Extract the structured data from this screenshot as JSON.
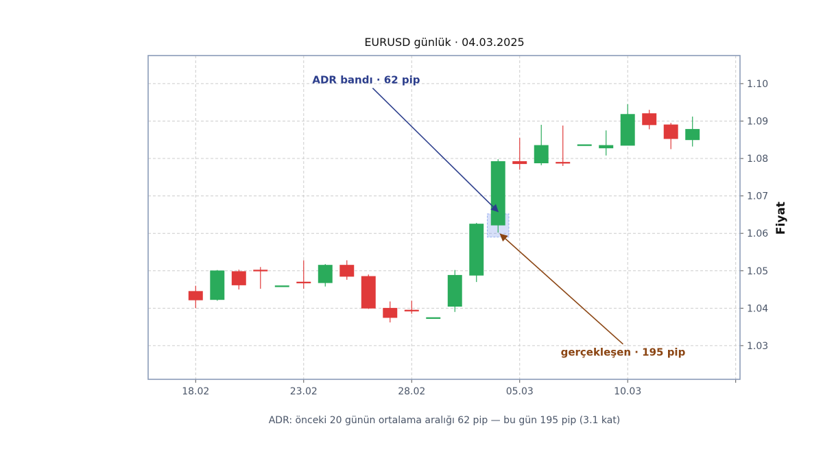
{
  "chart_data": {
    "type": "candlestick",
    "title": "EURUSD günlük · 04.03.2025",
    "ylabel": "Fiyat",
    "caption": "ADR: önceki 20 günün ortalama aralığı 62 pip — bu gün 195 pip (3.1 kat)",
    "ylim": [
      1.021,
      1.1075
    ],
    "y_ticks": [
      "1.03",
      "1.04",
      "1.05",
      "1.06",
      "1.07",
      "1.08",
      "1.09",
      "1.10"
    ],
    "y_tick_values": [
      1.03,
      1.04,
      1.05,
      1.06,
      1.07,
      1.08,
      1.09,
      1.1
    ],
    "x_ticks": [
      "18.02",
      "23.02",
      "28.02",
      "05.03",
      "10.03"
    ],
    "x_tick_index": [
      0,
      5,
      10,
      15,
      20
    ],
    "x_range": [
      -2.2,
      25.2
    ],
    "grid": true,
    "colors": {
      "up": "#2aab5b",
      "down": "#e03a3a",
      "adr_band": "#2c3e8c",
      "realized": "#8b4513",
      "frame": "#8a9bb8"
    },
    "candles": [
      {
        "date": "18.02",
        "open": 1.0445,
        "high": 1.046,
        "low": 1.04,
        "close": 1.0422
      },
      {
        "date": "19.02",
        "open": 1.0423,
        "high": 1.0502,
        "low": 1.042,
        "close": 1.05
      },
      {
        "date": "20.02",
        "open": 1.0498,
        "high": 1.0503,
        "low": 1.045,
        "close": 1.0462
      },
      {
        "date": "21.02",
        "open": 1.0502,
        "high": 1.051,
        "low": 1.0452,
        "close": 1.05
      },
      {
        "date": "22.02",
        "open": 1.046,
        "high": 1.046,
        "low": 1.046,
        "close": 1.046
      },
      {
        "date": "23.02",
        "open": 1.047,
        "high": 1.0528,
        "low": 1.0452,
        "close": 1.0468
      },
      {
        "date": "24.02",
        "open": 1.0468,
        "high": 1.0518,
        "low": 1.0458,
        "close": 1.0515
      },
      {
        "date": "25.02",
        "open": 1.0515,
        "high": 1.0528,
        "low": 1.0476,
        "close": 1.0485
      },
      {
        "date": "26.02",
        "open": 1.0485,
        "high": 1.049,
        "low": 1.0398,
        "close": 1.04
      },
      {
        "date": "27.02",
        "open": 1.04,
        "high": 1.0418,
        "low": 1.0362,
        "close": 1.0375
      },
      {
        "date": "28.02",
        "open": 1.0395,
        "high": 1.042,
        "low": 1.0385,
        "close": 1.0393
      },
      {
        "date": "01.03",
        "open": 1.0375,
        "high": 1.0375,
        "low": 1.0375,
        "close": 1.0375
      },
      {
        "date": "02.03",
        "open": 1.0405,
        "high": 1.0502,
        "low": 1.039,
        "close": 1.0488
      },
      {
        "date": "03.03",
        "open": 1.0488,
        "high": 1.0628,
        "low": 1.047,
        "close": 1.0625
      },
      {
        "date": "04.03",
        "open": 1.0622,
        "high": 1.0798,
        "low": 1.0602,
        "close": 1.0792
      },
      {
        "date": "05.03",
        "open": 1.0792,
        "high": 1.0855,
        "low": 1.077,
        "close": 1.0786
      },
      {
        "date": "06.03",
        "open": 1.0788,
        "high": 1.089,
        "low": 1.0782,
        "close": 1.0835
      },
      {
        "date": "07.03",
        "open": 1.079,
        "high": 1.0888,
        "low": 1.078,
        "close": 1.0788
      },
      {
        "date": "08.03",
        "open": 1.0837,
        "high": 1.0837,
        "low": 1.0837,
        "close": 1.0837
      },
      {
        "date": "09.03",
        "open": 1.0828,
        "high": 1.0875,
        "low": 1.0808,
        "close": 1.0835
      },
      {
        "date": "10.03",
        "open": 1.0835,
        "high": 1.0945,
        "low": 1.0835,
        "close": 1.0918
      },
      {
        "date": "11.03",
        "open": 1.092,
        "high": 1.093,
        "low": 1.0878,
        "close": 1.089
      },
      {
        "date": "12.03",
        "open": 1.089,
        "high": 1.0895,
        "low": 1.0825,
        "close": 1.0853
      },
      {
        "date": "13.03",
        "open": 1.085,
        "high": 1.0912,
        "low": 1.0832,
        "close": 1.0878
      }
    ],
    "adr_band": {
      "date_index": 14,
      "low": 1.059,
      "high": 1.0652
    },
    "annotations": [
      {
        "name": "adr-band-annotation",
        "text": "ADR bandı · 62 pip",
        "text_date_index": 5.4,
        "text_price": 1.101,
        "anchor": "start",
        "target_date_index": 14,
        "target_price": 1.0658,
        "color": "#2c3e8c"
      },
      {
        "name": "realized-range-annotation",
        "text": "gerçekleşen · 195 pip",
        "text_date_index": 16.9,
        "text_price": 1.0282,
        "anchor": "start",
        "target_date_index": 14.1,
        "target_price": 1.0598,
        "color": "#8b4513"
      }
    ]
  }
}
